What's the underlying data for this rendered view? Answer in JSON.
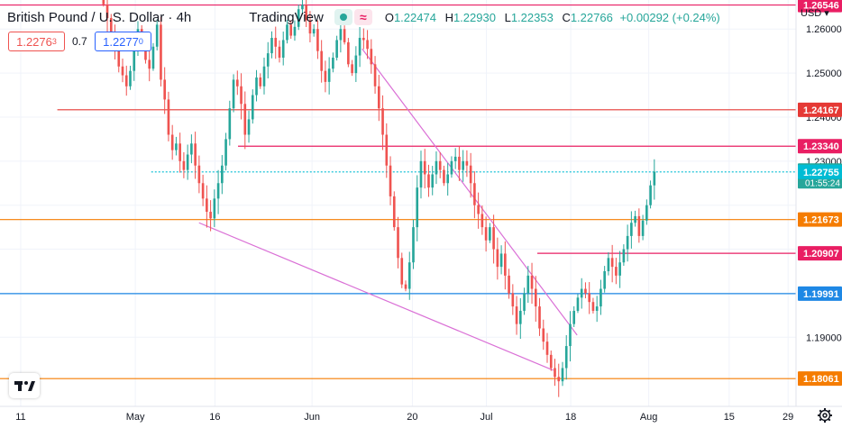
{
  "header": {
    "title": "British Pound / U.S. Dollar · 4h",
    "brand": "TradingView",
    "ohlc": [
      {
        "label": "O",
        "value": "1.22474"
      },
      {
        "label": "H",
        "value": "1.22930"
      },
      {
        "label": "L",
        "value": "1.22353"
      },
      {
        "label": "C",
        "value": "1.22766"
      }
    ],
    "change": "+0.00292 (+0.24%)"
  },
  "trade": {
    "sell_main": "1.2276",
    "sell_small": "3",
    "spread": "0.7",
    "buy_main": "1.2277",
    "buy_small": "0"
  },
  "currency": "USD",
  "colors": {
    "bull": "#26a69a",
    "bear": "#ef5350",
    "red_level": "#e53935",
    "pink_level": "#e91e63",
    "orange_level": "#f57c00",
    "blue_level": "#1e88e5",
    "cyan_price": "#00bcd4",
    "trend_violet": "#da70d6"
  },
  "chart_data": {
    "type": "candlestick",
    "symbol": "GBPUSD",
    "timeframe": "4h",
    "x_ticks": [
      "11",
      "May",
      "16",
      "Jun",
      "20",
      "Jul",
      "18",
      "Aug",
      "15",
      "29"
    ],
    "y_ticks": [
      "1.26000",
      "1.25000",
      "1.24000",
      "1.23000",
      "1.19000"
    ],
    "ylim": [
      1.1743,
      1.2666
    ],
    "last_price": 1.22766,
    "price_labels": [
      {
        "value": "1.26546",
        "color": "#e91e63"
      },
      {
        "value": "1.24167",
        "color": "#e53935"
      },
      {
        "value": "1.23340",
        "color": "#e91e63"
      },
      {
        "value": "1.22766",
        "color": "#26a69a",
        "countdown": "01:55:24"
      },
      {
        "value": "1.22755",
        "color": "#00bcd4"
      },
      {
        "value": "1.21673",
        "color": "#f57c00"
      },
      {
        "value": "1.20907",
        "color": "#e91e63"
      },
      {
        "value": "1.19991",
        "color": "#1e88e5"
      },
      {
        "value": "1.18061",
        "color": "#f57c00"
      }
    ],
    "levels": [
      {
        "price": 1.26546,
        "color": "#e91e63",
        "from": 0.0,
        "to": 1.0
      },
      {
        "price": 1.24167,
        "color": "#e53935",
        "from": 0.072,
        "to": 1.0
      },
      {
        "price": 1.2334,
        "color": "#e91e63",
        "from": 0.299,
        "to": 1.0
      },
      {
        "price": 1.22755,
        "color": "#00bcd4",
        "from": 0.19,
        "to": 1.0,
        "dashed": true
      },
      {
        "price": 1.21673,
        "color": "#f57c00",
        "from": 0.0,
        "to": 1.0
      },
      {
        "price": 1.20907,
        "color": "#e91e63",
        "from": 0.675,
        "to": 1.0
      },
      {
        "price": 1.19991,
        "color": "#1e88e5",
        "from": 0.0,
        "to": 1.0
      },
      {
        "price": 1.18061,
        "color": "#f57c00",
        "from": 0.0,
        "to": 1.0
      }
    ],
    "trendlines": [
      {
        "from": [
          0.25,
          1.216
        ],
        "to": [
          0.695,
          1.1825
        ]
      },
      {
        "from": [
          0.455,
          1.2555
        ],
        "to": [
          0.725,
          1.1905
        ]
      }
    ],
    "candles_close": [
      1.2656,
      1.2625,
      1.259,
      1.255,
      1.2515,
      1.2495,
      1.247,
      1.2505,
      1.2555,
      1.26,
      1.257,
      1.253,
      1.251,
      1.256,
      1.261,
      1.2485,
      1.244,
      1.236,
      1.2325,
      1.234,
      1.23,
      1.228,
      1.2315,
      1.234,
      1.229,
      1.225,
      1.2215,
      1.2185,
      1.217,
      1.2215,
      1.225,
      1.229,
      1.235,
      1.242,
      1.2485,
      1.247,
      1.243,
      1.236,
      1.2395,
      1.245,
      1.249,
      1.247,
      1.2515,
      1.2545,
      1.258,
      1.256,
      1.2535,
      1.2575,
      1.261,
      1.2585,
      1.2605,
      1.2645,
      1.2655,
      1.262,
      1.259,
      1.26,
      1.255,
      1.2505,
      1.248,
      1.251,
      1.2535,
      1.2575,
      1.26,
      1.257,
      1.252,
      1.25,
      1.254,
      1.258,
      1.2575,
      1.2555,
      1.252,
      1.247,
      1.242,
      1.236,
      1.229,
      1.222,
      1.215,
      1.208,
      1.202,
      1.201,
      1.207,
      1.215,
      1.224,
      1.23,
      1.227,
      1.224,
      1.227,
      1.23,
      1.228,
      1.225,
      1.227,
      1.23,
      1.231,
      1.228,
      1.23,
      1.229,
      1.225,
      1.22,
      1.218,
      1.215,
      1.212,
      1.215,
      1.21,
      1.206,
      1.209,
      1.204,
      1.2,
      1.197,
      1.193,
      1.196,
      1.2,
      1.204,
      1.201,
      1.197,
      1.192,
      1.189,
      1.186,
      1.183,
      1.181,
      1.18,
      1.183,
      1.188,
      1.193,
      1.196,
      1.199,
      1.201,
      1.2,
      1.198,
      1.196,
      1.197,
      1.201,
      1.205,
      1.208,
      1.206,
      1.204,
      1.207,
      1.21,
      1.213,
      1.216,
      1.2175,
      1.213,
      1.2165,
      1.22,
      1.2245,
      1.2276
    ]
  }
}
